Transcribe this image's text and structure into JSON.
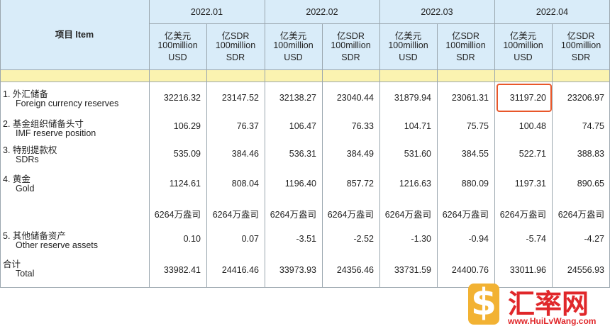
{
  "header": {
    "item": "项目 Item",
    "periods": [
      "2022.01",
      "2022.02",
      "2022.03",
      "2022.04"
    ],
    "units": [
      [
        "亿美元",
        "100million",
        "USD"
      ],
      [
        "亿SDR",
        "100million",
        "SDR"
      ],
      [
        "亿美元",
        "100million",
        "USD"
      ],
      [
        "亿SDR",
        "100million",
        "SDR"
      ],
      [
        "亿美元",
        "100million",
        "USD"
      ],
      [
        "亿SDR",
        "100million",
        "SDR"
      ],
      [
        "亿美元",
        "100million",
        "USD"
      ],
      [
        "亿SDR",
        "100million",
        "SDR"
      ]
    ]
  },
  "rows": [
    {
      "label_zh": "1. 外汇储备",
      "label_en": "Foreign currency reserves",
      "cells": [
        "32216.32",
        "23147.52",
        "32138.27",
        "23040.44",
        "31879.94",
        "23061.31",
        "31197.20",
        "23206.97"
      ]
    },
    {
      "label_zh": "2. 基金组织储备头寸",
      "label_en": "IMF reserve position",
      "cells": [
        "106.29",
        "76.37",
        "106.47",
        "76.33",
        "104.71",
        "75.75",
        "100.48",
        "74.75"
      ]
    },
    {
      "label_zh": "3. 特别提款权",
      "label_en": "SDRs",
      "cells": [
        "535.09",
        "384.46",
        "536.31",
        "384.49",
        "531.60",
        "384.55",
        "522.71",
        "388.83"
      ]
    },
    {
      "label_zh": "4. 黄金",
      "label_en": "Gold",
      "cells": [
        "1124.61",
        "808.04",
        "1196.40",
        "857.72",
        "1216.63",
        "880.09",
        "1197.31",
        "890.65"
      ]
    },
    {
      "cells": [
        "6264万盎司",
        "6264万盎司",
        "6264万盎司",
        "6264万盎司",
        "6264万盎司",
        "6264万盎司",
        "6264万盎司",
        "6264万盎司"
      ]
    },
    {
      "label_zh": "5. 其他储备资产",
      "label_en": "Other reserve assets",
      "cells": [
        "0.10",
        "0.07",
        "-3.51",
        "-2.52",
        "-1.30",
        "-0.94",
        "-5.74",
        "-4.27"
      ]
    },
    {
      "label_zh": "合计",
      "label_en": "Total",
      "cells": [
        "33982.41",
        "24416.46",
        "33973.93",
        "24356.46",
        "33731.59",
        "24400.76",
        "33011.96",
        "24556.93"
      ]
    }
  ],
  "logo": {
    "name": "汇率网",
    "url": "www.HuiLvWang.com"
  }
}
